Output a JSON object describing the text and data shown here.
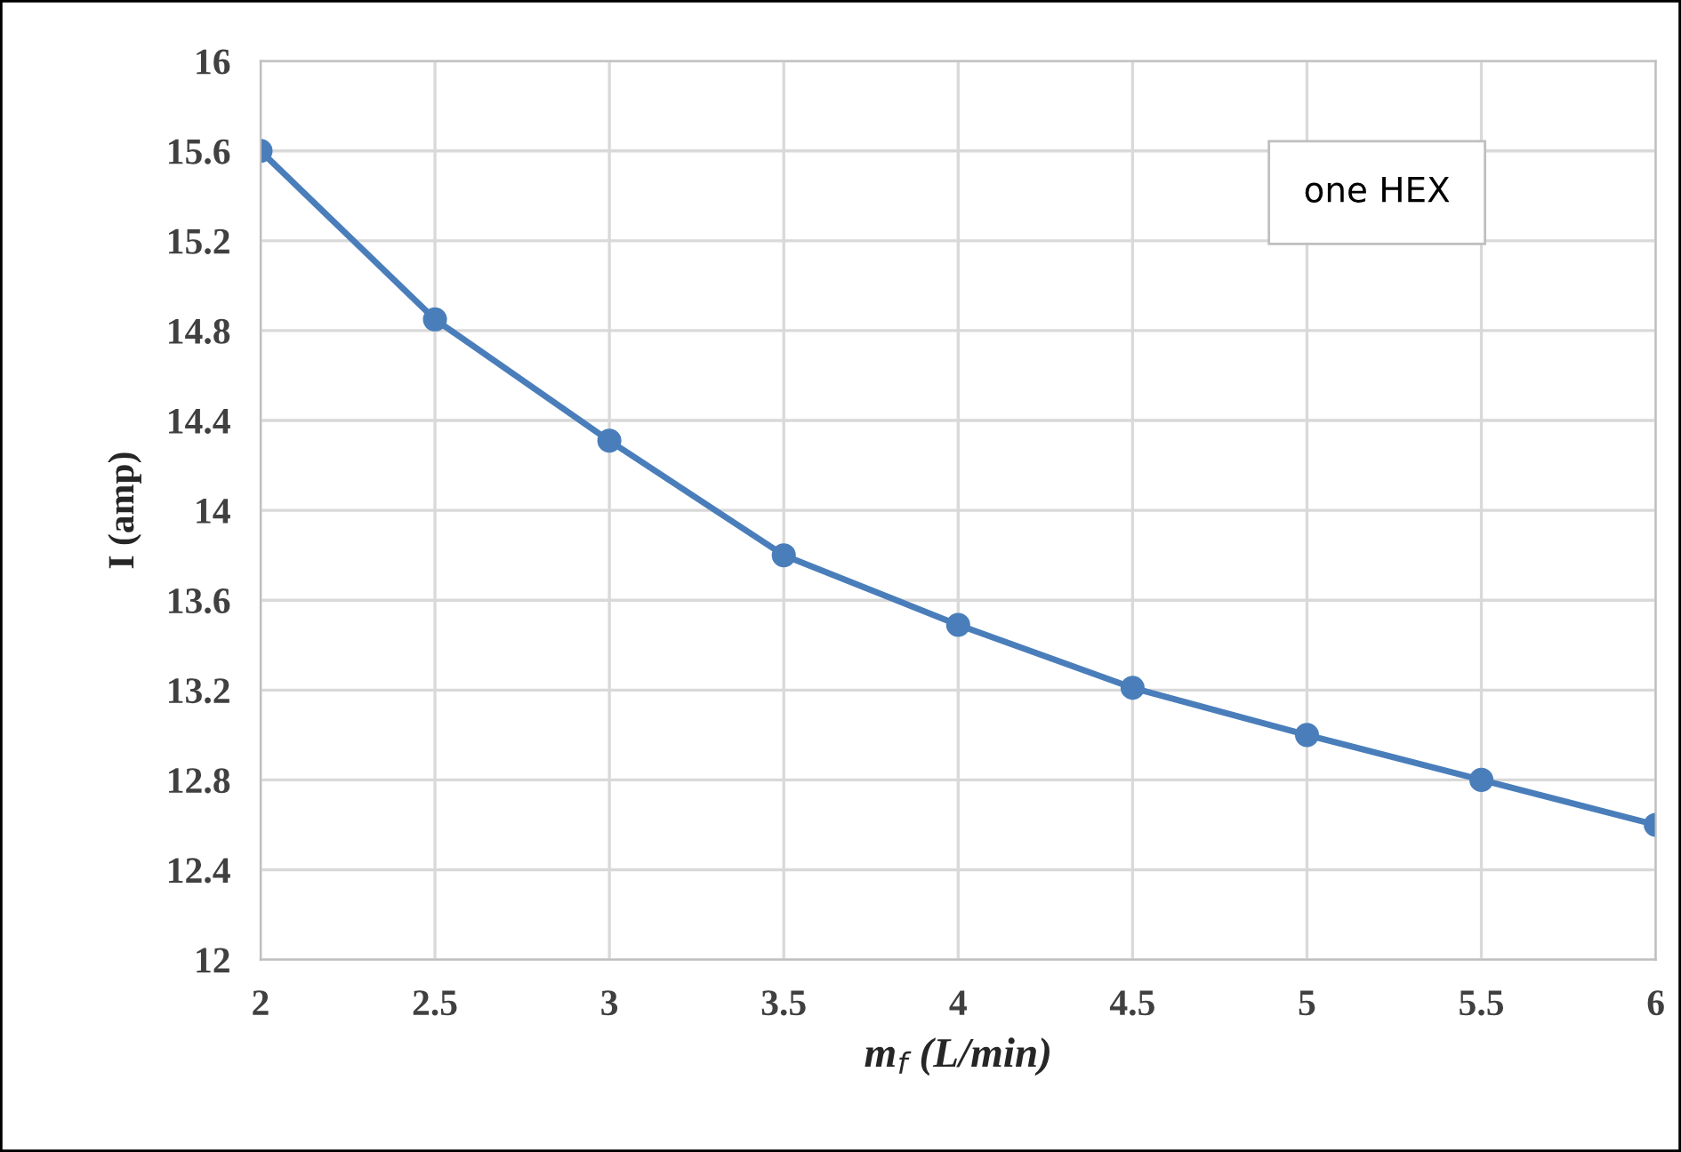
{
  "chart_data": {
    "type": "line",
    "xlabel": "m$_{f}$ (L/min)",
    "ylabel": "I (amp)",
    "x": [
      2,
      2.5,
      3,
      3.5,
      4,
      4.5,
      5,
      5.5,
      6
    ],
    "series": [
      {
        "name": "one HEX",
        "color": "#4a7ebb",
        "values": [
          15.6,
          14.85,
          14.31,
          13.8,
          13.49,
          13.21,
          13.0,
          12.8,
          12.6
        ]
      }
    ],
    "xlim": [
      2,
      6
    ],
    "xticks": [
      2,
      2.5,
      3,
      3.5,
      4,
      4.5,
      5,
      5.5,
      6
    ],
    "ylim": [
      12,
      16
    ],
    "yticks": [
      12,
      12.4,
      12.8,
      13.2,
      13.6,
      14,
      14.4,
      14.8,
      15.2,
      15.6,
      16
    ],
    "grid": true,
    "legend": "top right",
    "marker": "circle",
    "line_style": "solid"
  }
}
